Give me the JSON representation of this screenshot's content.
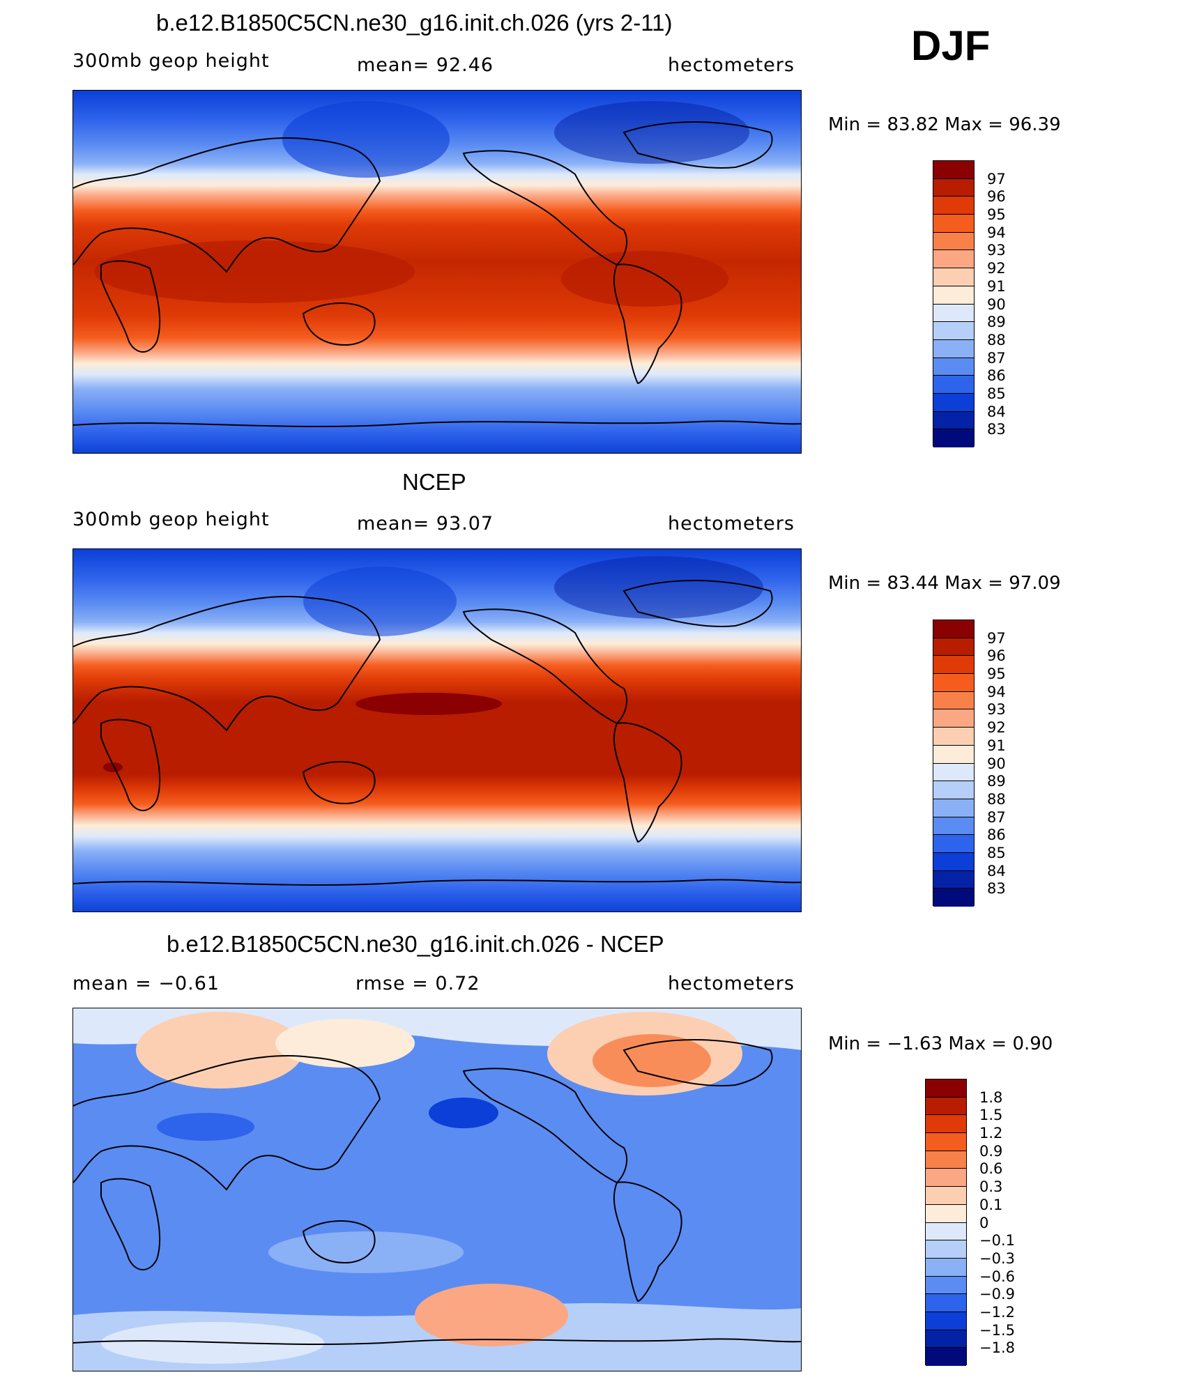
{
  "season": "DJF",
  "panels": [
    {
      "title": "b.e12.B1850C5CN.ne30_g16.init.ch.026 (yrs 2-11)",
      "left_label": "300mb  geop  height",
      "center_label": "mean=   92.46",
      "right_label": "hectometers",
      "min_max": "Min  =    83.82  Max  =    96.39",
      "colorbar": {
        "labels": [
          "97",
          "96",
          "95",
          "94",
          "93",
          "92",
          "91",
          "90",
          "89",
          "88",
          "87",
          "86",
          "85",
          "84",
          "83"
        ],
        "colors": [
          "#8b0000",
          "#b81d00",
          "#df3a07",
          "#f55d1e",
          "#f8814a",
          "#fba784",
          "#fccfb3",
          "#fdecd9",
          "#dde9fb",
          "#b6cff8",
          "#8ab0f6",
          "#5b8cf2",
          "#2e63ec",
          "#0c3fd7",
          "#0422a6",
          "#010a7a"
        ]
      }
    },
    {
      "title": "NCEP",
      "left_label": "300mb  geop  height",
      "center_label": "mean=   93.07",
      "right_label": "hectometers",
      "min_max": "Min  =    83.44  Max  =    97.09",
      "colorbar": {
        "labels": [
          "97",
          "96",
          "95",
          "94",
          "93",
          "92",
          "91",
          "90",
          "89",
          "88",
          "87",
          "86",
          "85",
          "84",
          "83"
        ],
        "colors": [
          "#8b0000",
          "#b81d00",
          "#df3a07",
          "#f55d1e",
          "#f8814a",
          "#fba784",
          "#fccfb3",
          "#fdecd9",
          "#dde9fb",
          "#b6cff8",
          "#8ab0f6",
          "#5b8cf2",
          "#2e63ec",
          "#0c3fd7",
          "#0422a6",
          "#010a7a"
        ]
      }
    },
    {
      "title": "b.e12.B1850C5CN.ne30_g16.init.ch.026 - NCEP",
      "left_label": "mean  =    −0.61",
      "center_label": "rmse  =     0.72",
      "right_label": "hectometers",
      "min_max": "Min  =    −1.63  Max  =     0.90",
      "colorbar": {
        "labels": [
          "1.8",
          "1.5",
          "1.2",
          "0.9",
          "0.6",
          "0.3",
          "0.1",
          "0",
          "−0.1",
          "−0.3",
          "−0.6",
          "−0.9",
          "−1.2",
          "−1.5",
          "−1.8"
        ],
        "colors": [
          "#8b0000",
          "#b81d00",
          "#df3a07",
          "#f55d1e",
          "#f8814a",
          "#fba784",
          "#fccfb3",
          "#fdecd9",
          "#dde9fb",
          "#b6cff8",
          "#8ab0f6",
          "#5b8cf2",
          "#2e63ec",
          "#0c3fd7",
          "#0422a6",
          "#010a7a"
        ]
      }
    }
  ]
}
